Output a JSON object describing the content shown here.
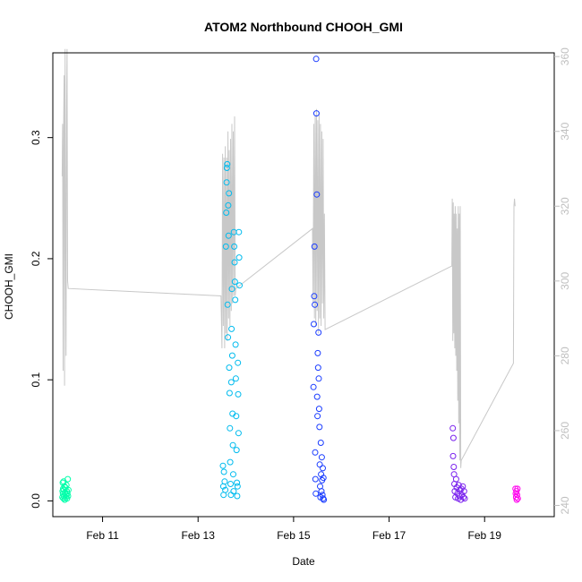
{
  "chart_data": {
    "type": "scatter",
    "title": "ATOM2 Northbound CHOOH_GMI",
    "xlabel": "Date",
    "ylabel": "CHOOH_GMI",
    "y2label": "",
    "xlim": [
      "2017-02-09T23:00:00",
      "2017-02-20T11:00:00"
    ],
    "ylim": [
      -0.013,
      0.37
    ],
    "y2lim": [
      237,
      361
    ],
    "x_ticks": [
      {
        "date": "2017-02-11",
        "label": "Feb 11"
      },
      {
        "date": "2017-02-13",
        "label": "Feb 13"
      },
      {
        "date": "2017-02-15",
        "label": "Feb 15"
      },
      {
        "date": "2017-02-17",
        "label": "Feb 17"
      },
      {
        "date": "2017-02-19",
        "label": "Feb 19"
      }
    ],
    "y_ticks": [
      "0.0",
      "0.1",
      "0.2",
      "0.3"
    ],
    "y2_ticks": [
      "240",
      "260",
      "280",
      "300",
      "320",
      "340",
      "360"
    ],
    "grid": false,
    "legend": "none",
    "series": [
      {
        "color": "#00ffaa",
        "points": [
          [
            "2017-02-10T03:50:00",
            0.003
          ],
          [
            "2017-02-10T03:55:00",
            0.008
          ],
          [
            "2017-02-10T04:00:00",
            0.015
          ],
          [
            "2017-02-10T04:05:00",
            0.006
          ],
          [
            "2017-02-10T04:10:00",
            0.01
          ],
          [
            "2017-02-10T04:20:00",
            0.002
          ],
          [
            "2017-02-10T04:25:00",
            0.016
          ],
          [
            "2017-02-10T04:30:00",
            0.009
          ],
          [
            "2017-02-10T04:40:00",
            0.004
          ],
          [
            "2017-02-10T04:50:00",
            0.012
          ],
          [
            "2017-02-10T05:00:00",
            0.001
          ],
          [
            "2017-02-10T05:10:00",
            0.007
          ],
          [
            "2017-02-10T05:20:00",
            0.011
          ],
          [
            "2017-02-10T05:30:00",
            0.003
          ],
          [
            "2017-02-10T05:40:00",
            0.005
          ],
          [
            "2017-02-10T05:50:00",
            0.013
          ],
          [
            "2017-02-10T06:00:00",
            0.008
          ],
          [
            "2017-02-10T06:10:00",
            0.002
          ],
          [
            "2017-02-10T06:20:00",
            0.006
          ],
          [
            "2017-02-10T06:30:00",
            0.018
          ],
          [
            "2017-02-10T06:40:00",
            0.004
          ],
          [
            "2017-02-10T06:50:00",
            0.009
          ]
        ]
      },
      {
        "color": "#00bbee",
        "points": [
          [
            "2017-02-13T12:30:00",
            0.029
          ],
          [
            "2017-02-13T12:40:00",
            0.012
          ],
          [
            "2017-02-13T12:50:00",
            0.005
          ],
          [
            "2017-02-13T13:00:00",
            0.024
          ],
          [
            "2017-02-13T13:20:00",
            0.016
          ],
          [
            "2017-02-13T13:40:00",
            0.009
          ],
          [
            "2017-02-13T14:00:00",
            0.21
          ],
          [
            "2017-02-13T14:10:00",
            0.238
          ],
          [
            "2017-02-13T14:20:00",
            0.263
          ],
          [
            "2017-02-13T14:30:00",
            0.275
          ],
          [
            "2017-02-13T14:40:00",
            0.278
          ],
          [
            "2017-02-13T14:50:00",
            0.162
          ],
          [
            "2017-02-13T15:00:00",
            0.135
          ],
          [
            "2017-02-13T15:10:00",
            0.244
          ],
          [
            "2017-02-13T15:20:00",
            0.219
          ],
          [
            "2017-02-13T15:30:00",
            0.254
          ],
          [
            "2017-02-13T15:40:00",
            0.11
          ],
          [
            "2017-02-13T15:50:00",
            0.089
          ],
          [
            "2017-02-13T16:00:00",
            0.06
          ],
          [
            "2017-02-13T16:10:00",
            0.032
          ],
          [
            "2017-02-13T16:20:00",
            0.014
          ],
          [
            "2017-02-13T16:30:00",
            0.005
          ],
          [
            "2017-02-13T16:40:00",
            0.098
          ],
          [
            "2017-02-13T16:50:00",
            0.142
          ],
          [
            "2017-02-13T17:00:00",
            0.175
          ],
          [
            "2017-02-13T17:10:00",
            0.12
          ],
          [
            "2017-02-13T17:20:00",
            0.072
          ],
          [
            "2017-02-13T17:30:00",
            0.046
          ],
          [
            "2017-02-13T17:40:00",
            0.022
          ],
          [
            "2017-02-13T17:50:00",
            0.008
          ],
          [
            "2017-02-13T18:00:00",
            0.222
          ],
          [
            "2017-02-13T18:10:00",
            0.21
          ],
          [
            "2017-02-13T18:20:00",
            0.197
          ],
          [
            "2017-02-13T18:30:00",
            0.181
          ],
          [
            "2017-02-13T18:40:00",
            0.166
          ],
          [
            "2017-02-13T18:50:00",
            0.129
          ],
          [
            "2017-02-13T19:00:00",
            0.101
          ],
          [
            "2017-02-13T19:10:00",
            0.07
          ],
          [
            "2017-02-13T19:20:00",
            0.042
          ],
          [
            "2017-02-13T19:30:00",
            0.015
          ],
          [
            "2017-02-13T19:40:00",
            0.004
          ],
          [
            "2017-02-13T19:50:00",
            0.012
          ],
          [
            "2017-02-13T20:00:00",
            0.114
          ],
          [
            "2017-02-13T20:10:00",
            0.088
          ],
          [
            "2017-02-13T20:20:00",
            0.056
          ],
          [
            "2017-02-13T20:30:00",
            0.222
          ],
          [
            "2017-02-13T20:40:00",
            0.201
          ],
          [
            "2017-02-13T20:50:00",
            0.178
          ]
        ]
      },
      {
        "color": "#1a3cff",
        "points": [
          [
            "2017-02-15T10:00:00",
            0.094
          ],
          [
            "2017-02-15T10:10:00",
            0.146
          ],
          [
            "2017-02-15T10:20:00",
            0.169
          ],
          [
            "2017-02-15T10:30:00",
            0.21
          ],
          [
            "2017-02-15T10:40:00",
            0.162
          ],
          [
            "2017-02-15T10:50:00",
            0.04
          ],
          [
            "2017-02-15T11:00:00",
            0.018
          ],
          [
            "2017-02-15T11:10:00",
            0.006
          ],
          [
            "2017-02-15T11:20:00",
            0.365
          ],
          [
            "2017-02-15T11:30:00",
            0.32
          ],
          [
            "2017-02-15T11:40:00",
            0.253
          ],
          [
            "2017-02-15T11:50:00",
            0.086
          ],
          [
            "2017-02-15T12:00:00",
            0.07
          ],
          [
            "2017-02-15T12:10:00",
            0.122
          ],
          [
            "2017-02-15T12:20:00",
            0.11
          ],
          [
            "2017-02-15T12:30:00",
            0.139
          ],
          [
            "2017-02-15T12:40:00",
            0.101
          ],
          [
            "2017-02-15T12:50:00",
            0.076
          ],
          [
            "2017-02-15T13:00:00",
            0.061
          ],
          [
            "2017-02-15T13:10:00",
            0.03
          ],
          [
            "2017-02-15T13:20:00",
            0.012
          ],
          [
            "2017-02-15T13:30:00",
            0.003
          ],
          [
            "2017-02-15T13:40:00",
            0.048
          ],
          [
            "2017-02-15T13:50:00",
            0.022
          ],
          [
            "2017-02-15T14:00:00",
            0.008
          ],
          [
            "2017-02-15T14:10:00",
            0.036
          ],
          [
            "2017-02-15T14:20:00",
            0.017
          ],
          [
            "2017-02-15T14:30:00",
            0.005
          ],
          [
            "2017-02-15T14:40:00",
            0.027
          ],
          [
            "2017-02-15T14:50:00",
            0.002
          ],
          [
            "2017-02-15T15:00:00",
            0.019
          ],
          [
            "2017-02-15T15:10:00",
            0.001
          ]
        ]
      },
      {
        "color": "#7a22ee",
        "points": [
          [
            "2017-02-18T08:00:00",
            0.06
          ],
          [
            "2017-02-18T08:10:00",
            0.037
          ],
          [
            "2017-02-18T08:20:00",
            0.052
          ],
          [
            "2017-02-18T08:30:00",
            0.028
          ],
          [
            "2017-02-18T08:40:00",
            0.022
          ],
          [
            "2017-02-18T08:50:00",
            0.014
          ],
          [
            "2017-02-18T09:00:00",
            0.008
          ],
          [
            "2017-02-18T09:20:00",
            0.003
          ],
          [
            "2017-02-18T09:40:00",
            0.018
          ],
          [
            "2017-02-18T10:00:00",
            0.011
          ],
          [
            "2017-02-18T10:20:00",
            0.006
          ],
          [
            "2017-02-18T10:40:00",
            0.002
          ],
          [
            "2017-02-18T11:00:00",
            0.013
          ],
          [
            "2017-02-18T11:20:00",
            0.004
          ],
          [
            "2017-02-18T11:40:00",
            0.009
          ],
          [
            "2017-02-18T12:00:00",
            0.001
          ],
          [
            "2017-02-18T12:20:00",
            0.01
          ],
          [
            "2017-02-18T12:40:00",
            0.005
          ],
          [
            "2017-02-18T13:00:00",
            0.012
          ],
          [
            "2017-02-18T13:20:00",
            0.003
          ],
          [
            "2017-02-18T13:40:00",
            0.008
          ],
          [
            "2017-02-18T14:00:00",
            0.002
          ]
        ]
      },
      {
        "color": "#ff00ee",
        "points": [
          [
            "2017-02-19T15:30:00",
            0.01
          ],
          [
            "2017-02-19T15:40:00",
            0.006
          ],
          [
            "2017-02-19T15:50:00",
            0.003
          ],
          [
            "2017-02-19T16:00:00",
            0.008
          ],
          [
            "2017-02-19T16:10:00",
            0.001
          ],
          [
            "2017-02-19T16:20:00",
            0.005
          ],
          [
            "2017-02-19T16:30:00",
            0.01
          ],
          [
            "2017-02-19T16:40:00",
            0.002
          ]
        ]
      }
    ],
    "line_series": {
      "axis": "right",
      "color": "#c8c8c8",
      "points": [
        [
          "2017-02-10T03:40:00",
          328
        ],
        [
          "2017-02-10T03:55:00",
          342
        ],
        [
          "2017-02-10T04:10:00",
          276
        ],
        [
          "2017-02-10T04:25:00",
          340
        ],
        [
          "2017-02-10T04:40:00",
          355
        ],
        [
          "2017-02-10T04:55:00",
          272
        ],
        [
          "2017-02-10T05:10:00",
          362
        ],
        [
          "2017-02-10T05:25:00",
          310
        ],
        [
          "2017-02-10T05:40:00",
          280
        ],
        [
          "2017-02-10T05:55:00",
          346
        ],
        [
          "2017-02-10T06:10:00",
          362
        ],
        [
          "2017-02-10T06:25:00",
          300
        ],
        [
          "2017-02-10T06:45:00",
          298
        ],
        [
          "2017-02-13T11:30:00",
          296
        ],
        [
          "2017-02-13T12:00:00",
          282
        ],
        [
          "2017-02-13T12:20:00",
          334
        ],
        [
          "2017-02-13T12:40:00",
          288
        ],
        [
          "2017-02-13T13:00:00",
          333
        ],
        [
          "2017-02-13T13:20:00",
          282
        ],
        [
          "2017-02-13T13:40:00",
          336
        ],
        [
          "2017-02-13T14:00:00",
          286
        ],
        [
          "2017-02-13T14:20:00",
          333
        ],
        [
          "2017-02-13T14:40:00",
          284
        ],
        [
          "2017-02-13T15:00:00",
          340
        ],
        [
          "2017-02-13T15:20:00",
          290
        ],
        [
          "2017-02-13T15:40:00",
          335
        ],
        [
          "2017-02-13T16:00:00",
          288
        ],
        [
          "2017-02-13T16:20:00",
          338
        ],
        [
          "2017-02-13T16:40:00",
          292
        ],
        [
          "2017-02-13T17:00:00",
          342
        ],
        [
          "2017-02-13T17:20:00",
          294
        ],
        [
          "2017-02-13T17:40:00",
          340
        ],
        [
          "2017-02-13T18:00:00",
          296
        ],
        [
          "2017-02-13T18:20:00",
          344
        ],
        [
          "2017-02-13T18:40:00",
          296
        ],
        [
          "2017-02-13T19:00:00",
          298
        ],
        [
          "2017-02-15T09:30:00",
          314
        ],
        [
          "2017-02-15T09:50:00",
          294
        ],
        [
          "2017-02-15T10:10:00",
          342
        ],
        [
          "2017-02-15T10:30:00",
          290
        ],
        [
          "2017-02-15T10:50:00",
          344
        ],
        [
          "2017-02-15T11:10:00",
          288
        ],
        [
          "2017-02-15T11:30:00",
          346
        ],
        [
          "2017-02-15T11:50:00",
          292
        ],
        [
          "2017-02-15T12:10:00",
          343
        ],
        [
          "2017-02-15T12:30:00",
          286
        ],
        [
          "2017-02-15T12:50:00",
          345
        ],
        [
          "2017-02-15T13:10:00",
          290
        ],
        [
          "2017-02-15T13:30:00",
          342
        ],
        [
          "2017-02-15T13:50:00",
          288
        ],
        [
          "2017-02-15T14:10:00",
          340
        ],
        [
          "2017-02-15T14:30:00",
          294
        ],
        [
          "2017-02-15T14:50:00",
          338
        ],
        [
          "2017-02-15T15:10:00",
          290
        ],
        [
          "2017-02-15T15:30:00",
          318
        ],
        [
          "2017-02-15T15:50:00",
          287
        ],
        [
          "2017-02-18T07:30:00",
          304
        ],
        [
          "2017-02-18T07:45:00",
          322
        ],
        [
          "2017-02-18T08:00:00",
          284
        ],
        [
          "2017-02-18T08:15:00",
          321
        ],
        [
          "2017-02-18T08:30:00",
          286
        ],
        [
          "2017-02-18T08:45:00",
          318
        ],
        [
          "2017-02-18T09:00:00",
          282
        ],
        [
          "2017-02-18T09:15:00",
          320
        ],
        [
          "2017-02-18T09:30:00",
          280
        ],
        [
          "2017-02-18T09:45:00",
          318
        ],
        [
          "2017-02-18T10:00:00",
          276
        ],
        [
          "2017-02-18T10:15:00",
          314
        ],
        [
          "2017-02-18T10:30:00",
          268
        ],
        [
          "2017-02-18T10:45:00",
          320
        ],
        [
          "2017-02-18T11:00:00",
          262
        ],
        [
          "2017-02-18T11:15:00",
          318
        ],
        [
          "2017-02-18T11:30:00",
          252
        ],
        [
          "2017-02-18T11:45:00",
          320
        ],
        [
          "2017-02-18T12:00:00",
          250
        ],
        [
          "2017-02-18T12:15:00",
          252
        ],
        [
          "2017-02-19T14:30:00",
          278
        ],
        [
          "2017-02-19T14:45:00",
          320
        ],
        [
          "2017-02-19T15:00:00",
          322
        ],
        [
          "2017-02-19T15:20:00",
          320
        ]
      ]
    }
  }
}
